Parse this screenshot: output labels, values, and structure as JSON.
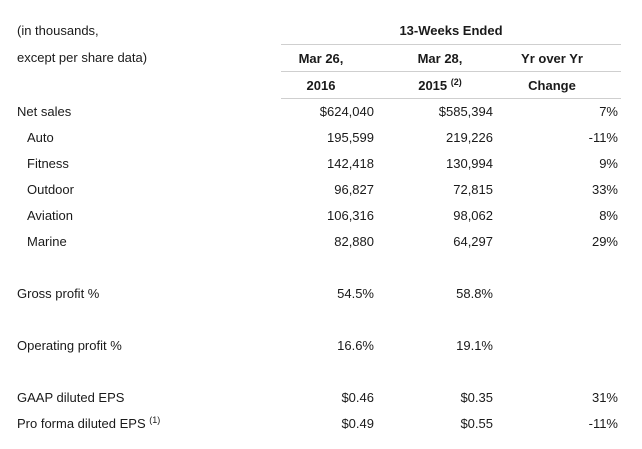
{
  "header": {
    "unit_line1": "(in thousands,",
    "unit_line2": "except per share data)",
    "period_group": "13-Weeks Ended",
    "columns": [
      {
        "line1": "Mar 26,",
        "line2": "2016",
        "sup": ""
      },
      {
        "line1": "Mar 28,",
        "line2": "2015",
        "sup": "(2)"
      },
      {
        "line1": "Yr over Yr",
        "line2": "Change",
        "sup": ""
      }
    ]
  },
  "rows": [
    {
      "label": "Net sales",
      "indent": false,
      "sup": "",
      "v2016": "$624,040",
      "v2015": "$585,394",
      "change": "7%"
    },
    {
      "label": "Auto",
      "indent": true,
      "sup": "",
      "v2016": "195,599",
      "v2015": "219,226",
      "change": "-11%"
    },
    {
      "label": "Fitness",
      "indent": true,
      "sup": "",
      "v2016": "142,418",
      "v2015": "130,994",
      "change": "9%"
    },
    {
      "label": "Outdoor",
      "indent": true,
      "sup": "",
      "v2016": "96,827",
      "v2015": "72,815",
      "change": "33%"
    },
    {
      "label": "Aviation",
      "indent": true,
      "sup": "",
      "v2016": "106,316",
      "v2015": "98,062",
      "change": "8%"
    },
    {
      "label": "Marine",
      "indent": true,
      "sup": "",
      "v2016": "82,880",
      "v2015": "64,297",
      "change": "29%"
    },
    {
      "label": "Gross profit %",
      "indent": false,
      "sup": "",
      "v2016": "54.5%",
      "v2015": "58.8%",
      "change": ""
    },
    {
      "label": "Operating profit %",
      "indent": false,
      "sup": "",
      "v2016": "16.6%",
      "v2015": "19.1%",
      "change": ""
    },
    {
      "label": "GAAP diluted EPS",
      "indent": false,
      "sup": "",
      "v2016": "$0.46",
      "v2015": "$0.35",
      "change": "31%"
    },
    {
      "label": "Pro forma diluted EPS",
      "indent": false,
      "sup": "(1)",
      "v2016": "$0.49",
      "v2015": "$0.55",
      "change": "-11%"
    }
  ]
}
